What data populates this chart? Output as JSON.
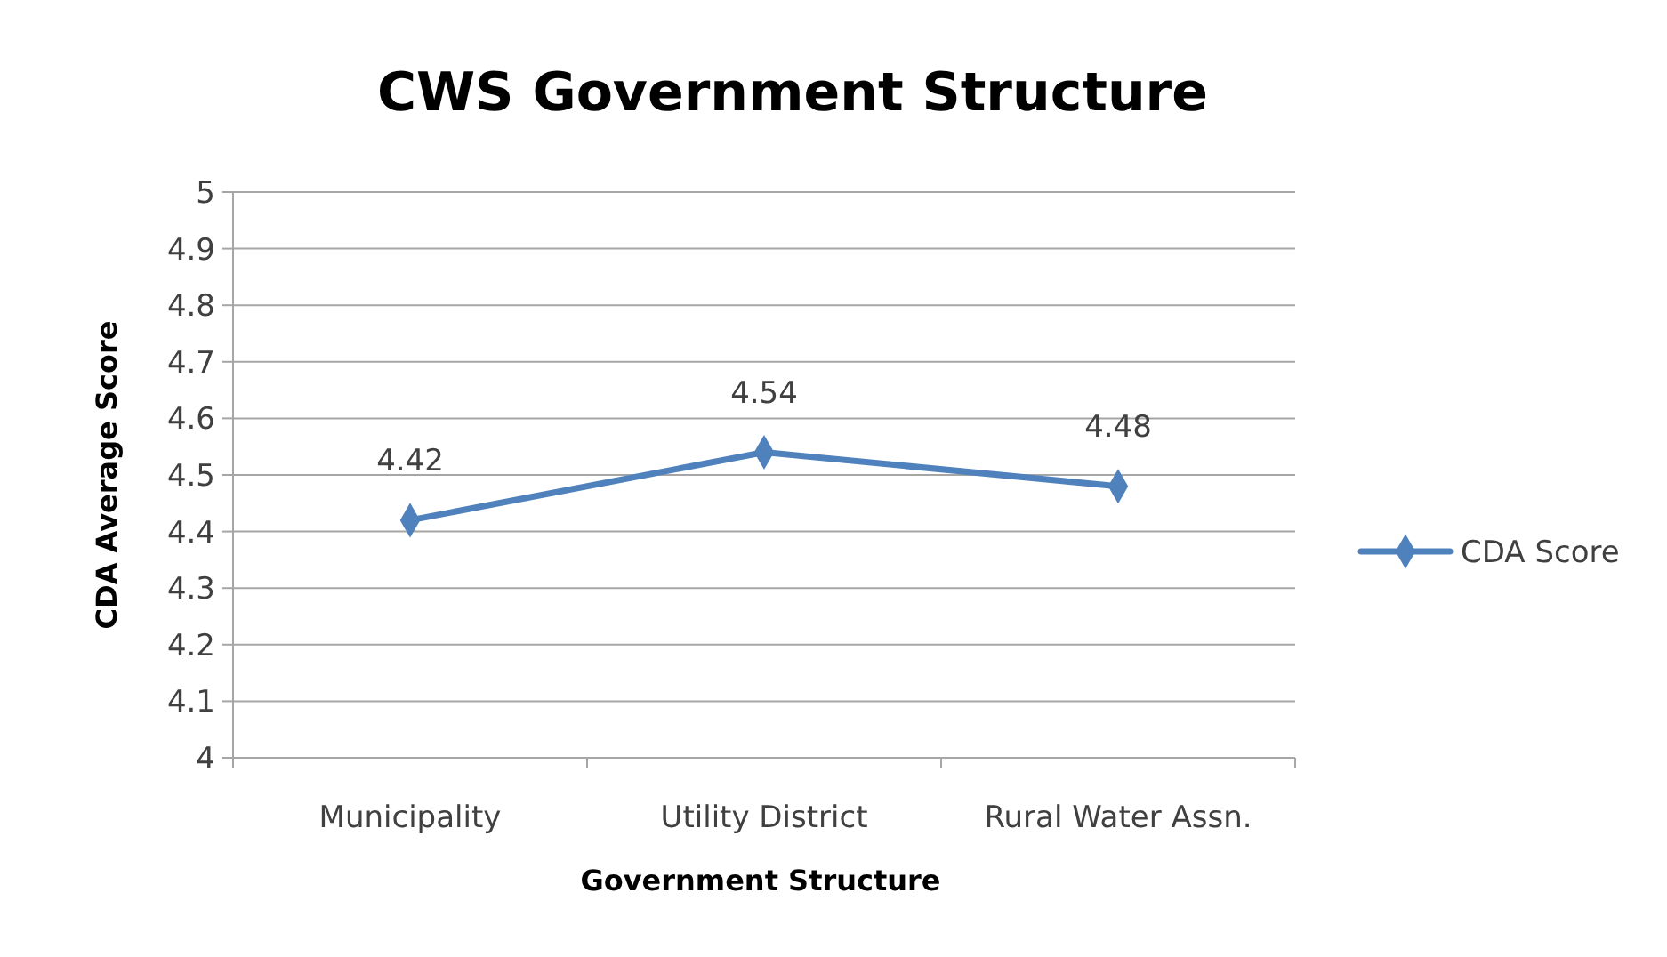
{
  "chart_data": {
    "type": "line",
    "title": "CWS Government Structure",
    "xlabel": "Government Structure",
    "ylabel": "CDA Average Score",
    "categories": [
      "Municipality",
      "Utility District",
      "Rural Water Assn."
    ],
    "series": [
      {
        "name": "CDA Score",
        "color": "#4f81bd",
        "values": [
          4.42,
          4.54,
          4.48
        ]
      }
    ],
    "ylim": [
      4,
      5
    ],
    "yticks": [
      4,
      4.1,
      4.2,
      4.3,
      4.4,
      4.5,
      4.6,
      4.7,
      4.8,
      4.9,
      5
    ],
    "grid": "y",
    "legend": "right",
    "marker": "diamond",
    "line_style": "solid",
    "data_labels": true
  }
}
